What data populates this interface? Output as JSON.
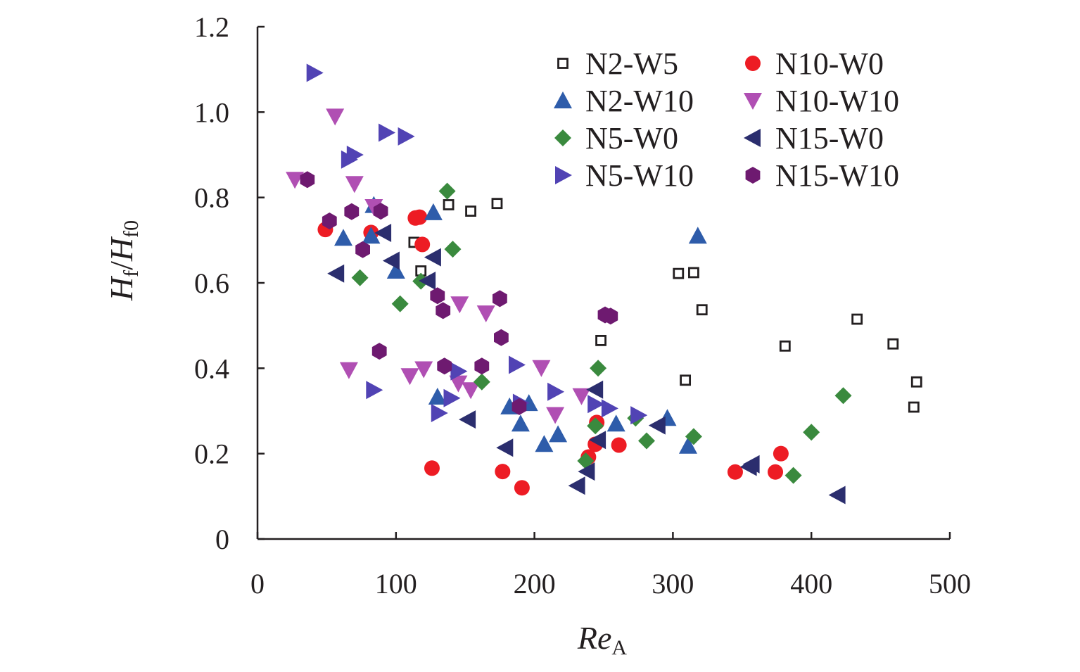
{
  "chart_data": {
    "type": "scatter",
    "xlabel": {
      "main": "Re",
      "sub": "A"
    },
    "ylabel": {
      "main1": "H",
      "sub1": "f",
      "slash": "/",
      "main2": "H",
      "sub2": "f0"
    },
    "xlim": [
      0,
      500
    ],
    "ylim": [
      0,
      1.2
    ],
    "xticks": [
      0,
      100,
      200,
      300,
      400,
      500
    ],
    "xtick_labels": [
      "0",
      "100",
      "200",
      "300",
      "400",
      "500"
    ],
    "yticks": [
      0,
      0.2,
      0.4,
      0.6,
      0.8,
      1.0,
      1.2
    ],
    "ytick_labels": [
      "0",
      "0.2",
      "0.4",
      "0.6",
      "0.8",
      "1.0",
      "1.2"
    ],
    "grid": false,
    "legend_position": "top-right",
    "series": [
      {
        "name": "N2-W5",
        "marker": "open-square",
        "color": "#231f20",
        "points": [
          [
            113,
            0.695
          ],
          [
            118,
            0.628
          ],
          [
            138,
            0.783
          ],
          [
            154,
            0.768
          ],
          [
            173,
            0.786
          ],
          [
            248,
            0.465
          ],
          [
            304,
            0.622
          ],
          [
            309,
            0.372
          ],
          [
            315,
            0.624
          ],
          [
            321,
            0.537
          ],
          [
            381,
            0.452
          ],
          [
            433,
            0.515
          ],
          [
            459,
            0.457
          ],
          [
            474,
            0.309
          ],
          [
            476,
            0.368
          ]
        ]
      },
      {
        "name": "N10-W0",
        "marker": "circle",
        "color": "#ed1c24",
        "points": [
          [
            49,
            0.725
          ],
          [
            82,
            0.718
          ],
          [
            114,
            0.752
          ],
          [
            117,
            0.754
          ],
          [
            119,
            0.69
          ],
          [
            126,
            0.166
          ],
          [
            177,
            0.158
          ],
          [
            191,
            0.12
          ],
          [
            239,
            0.192
          ],
          [
            244,
            0.222
          ],
          [
            245,
            0.273
          ],
          [
            261,
            0.22
          ],
          [
            345,
            0.157
          ],
          [
            374,
            0.157
          ],
          [
            378,
            0.2
          ]
        ]
      },
      {
        "name": "N2-W10",
        "marker": "triangle-up",
        "color": "#2e5caa",
        "points": [
          [
            62,
            0.705
          ],
          [
            82,
            0.71
          ],
          [
            84,
            0.782
          ],
          [
            100,
            0.628
          ],
          [
            127,
            0.765
          ],
          [
            130,
            0.333
          ],
          [
            182,
            0.31
          ],
          [
            190,
            0.27
          ],
          [
            196,
            0.318
          ],
          [
            207,
            0.222
          ],
          [
            217,
            0.245
          ],
          [
            259,
            0.27
          ],
          [
            296,
            0.283
          ],
          [
            311,
            0.218
          ],
          [
            318,
            0.71
          ]
        ]
      },
      {
        "name": "N10-W10",
        "marker": "triangle-down",
        "color": "#b04fb3",
        "points": [
          [
            27,
            0.842
          ],
          [
            56,
            0.99
          ],
          [
            66,
            0.396
          ],
          [
            70,
            0.832
          ],
          [
            84,
            0.778
          ],
          [
            110,
            0.382
          ],
          [
            120,
            0.398
          ],
          [
            145,
            0.365
          ],
          [
            146,
            0.55
          ],
          [
            154,
            0.349
          ],
          [
            165,
            0.529
          ],
          [
            205,
            0.401
          ],
          [
            215,
            0.291
          ],
          [
            234,
            0.335
          ]
        ]
      },
      {
        "name": "N5-W0",
        "marker": "diamond",
        "color": "#3a8a3e",
        "points": [
          [
            74,
            0.612
          ],
          [
            103,
            0.551
          ],
          [
            118,
            0.604
          ],
          [
            137,
            0.815
          ],
          [
            141,
            0.679
          ],
          [
            162,
            0.368
          ],
          [
            237,
            0.183
          ],
          [
            244,
            0.265
          ],
          [
            246,
            0.4
          ],
          [
            273,
            0.283
          ],
          [
            281,
            0.23
          ],
          [
            315,
            0.24
          ],
          [
            387,
            0.149
          ],
          [
            400,
            0.25
          ],
          [
            423,
            0.336
          ]
        ]
      },
      {
        "name": "N15-W0",
        "marker": "triangle-left",
        "color": "#2b2e6e",
        "points": [
          [
            57,
            0.622
          ],
          [
            91,
            0.717
          ],
          [
            97,
            0.652
          ],
          [
            123,
            0.605
          ],
          [
            127,
            0.66
          ],
          [
            152,
            0.28
          ],
          [
            179,
            0.214
          ],
          [
            231,
            0.125
          ],
          [
            238,
            0.158
          ],
          [
            244,
            0.35
          ],
          [
            246,
            0.232
          ],
          [
            289,
            0.266
          ],
          [
            355,
            0.169
          ],
          [
            357,
            0.175
          ],
          [
            419,
            0.103
          ]
        ]
      },
      {
        "name": "N5-W10",
        "marker": "triangle-right",
        "color": "#5143b4",
        "points": [
          [
            41,
            1.092
          ],
          [
            66,
            0.889
          ],
          [
            70,
            0.9
          ],
          [
            84,
            0.349
          ],
          [
            93,
            0.952
          ],
          [
            107,
            0.943
          ],
          [
            131,
            0.295
          ],
          [
            140,
            0.33
          ],
          [
            145,
            0.393
          ],
          [
            187,
            0.408
          ],
          [
            190,
            0.319
          ],
          [
            215,
            0.345
          ],
          [
            244,
            0.316
          ],
          [
            254,
            0.306
          ],
          [
            275,
            0.29
          ]
        ]
      },
      {
        "name": "N15-W10",
        "marker": "hexagon",
        "color": "#6e1a70",
        "points": [
          [
            36,
            0.842
          ],
          [
            52,
            0.745
          ],
          [
            68,
            0.767
          ],
          [
            76,
            0.678
          ],
          [
            88,
            0.44
          ],
          [
            89,
            0.768
          ],
          [
            130,
            0.57
          ],
          [
            134,
            0.535
          ],
          [
            135,
            0.405
          ],
          [
            162,
            0.405
          ],
          [
            175,
            0.563
          ],
          [
            176,
            0.472
          ],
          [
            189,
            0.31
          ],
          [
            251,
            0.525
          ],
          [
            255,
            0.522
          ]
        ]
      }
    ]
  }
}
